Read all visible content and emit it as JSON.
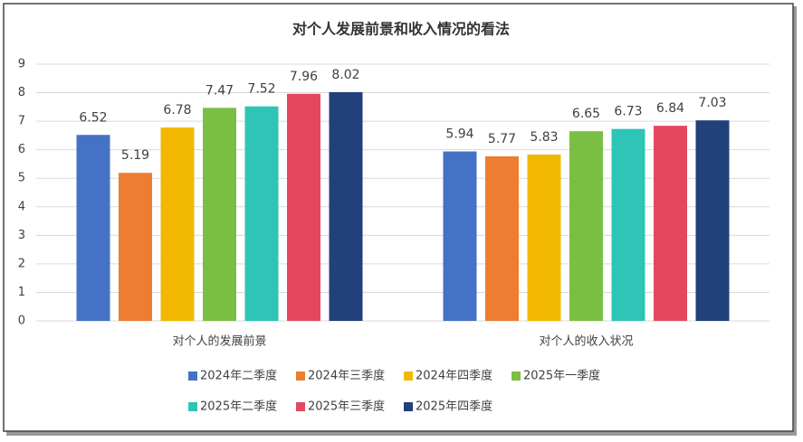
{
  "chart_data": {
    "type": "bar",
    "title": "对个人发展前景和收入情况的看法",
    "categories": [
      "对个人的发展前景",
      "对个人的收入状况"
    ],
    "series": [
      {
        "name": "2024年二季度",
        "color": "#4472c4",
        "values": [
          6.52,
          5.94
        ]
      },
      {
        "name": "2024年三季度",
        "color": "#ed7d31",
        "values": [
          5.19,
          5.77
        ]
      },
      {
        "name": "2024年四季度",
        "color": "#f2b800",
        "values": [
          6.78,
          5.83
        ]
      },
      {
        "name": "2025年一季度",
        "color": "#7abf43",
        "values": [
          7.47,
          6.65
        ]
      },
      {
        "name": "2025年二季度",
        "color": "#2ec4b6",
        "values": [
          7.52,
          6.73
        ]
      },
      {
        "name": "2025年三季度",
        "color": "#e5475f",
        "values": [
          7.96,
          6.84
        ]
      },
      {
        "name": "2025年四季度",
        "color": "#22407a",
        "values": [
          8.02,
          7.03
        ]
      }
    ],
    "ylim": [
      0,
      9
    ],
    "yticks": [
      0,
      1,
      2,
      3,
      4,
      5,
      6,
      7,
      8,
      9
    ],
    "grid": true,
    "legend": "bottom"
  }
}
